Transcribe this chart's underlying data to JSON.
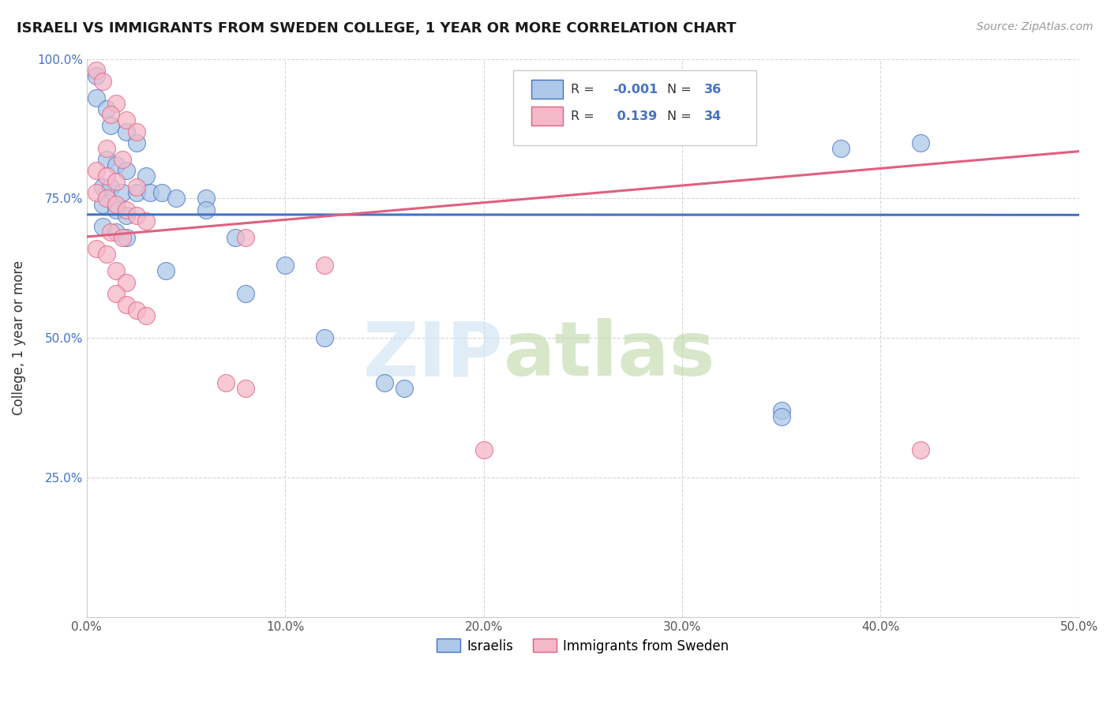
{
  "title": "ISRAELI VS IMMIGRANTS FROM SWEDEN COLLEGE, 1 YEAR OR MORE CORRELATION CHART",
  "source": "Source: ZipAtlas.com",
  "ylabel": "College, 1 year or more",
  "xlim": [
    0.0,
    0.5
  ],
  "ylim": [
    0.0,
    1.0
  ],
  "xticks": [
    0.0,
    0.1,
    0.2,
    0.3,
    0.4,
    0.5
  ],
  "xticklabels": [
    "0.0%",
    "10.0%",
    "20.0%",
    "30.0%",
    "40.0%",
    "50.0%"
  ],
  "yticks": [
    0.0,
    0.25,
    0.5,
    0.75,
    1.0
  ],
  "yticklabels": [
    "",
    "25.0%",
    "50.0%",
    "75.0%",
    "100.0%"
  ],
  "blue_color": "#adc8e8",
  "pink_color": "#f5b8c8",
  "blue_line_color": "#4472c4",
  "pink_line_color": "#e06080",
  "blue_R": -0.001,
  "blue_N": 36,
  "pink_R": 0.139,
  "pink_N": 34,
  "blue_dots": [
    [
      0.005,
      0.97
    ],
    [
      0.005,
      0.93
    ],
    [
      0.01,
      0.91
    ],
    [
      0.012,
      0.88
    ],
    [
      0.02,
      0.87
    ],
    [
      0.025,
      0.85
    ],
    [
      0.01,
      0.82
    ],
    [
      0.015,
      0.81
    ],
    [
      0.02,
      0.8
    ],
    [
      0.03,
      0.79
    ],
    [
      0.008,
      0.77
    ],
    [
      0.012,
      0.77
    ],
    [
      0.018,
      0.76
    ],
    [
      0.025,
      0.76
    ],
    [
      0.032,
      0.76
    ],
    [
      0.038,
      0.76
    ],
    [
      0.045,
      0.75
    ],
    [
      0.06,
      0.75
    ],
    [
      0.008,
      0.74
    ],
    [
      0.015,
      0.73
    ],
    [
      0.02,
      0.72
    ],
    [
      0.06,
      0.73
    ],
    [
      0.008,
      0.7
    ],
    [
      0.015,
      0.69
    ],
    [
      0.02,
      0.68
    ],
    [
      0.075,
      0.68
    ],
    [
      0.04,
      0.62
    ],
    [
      0.1,
      0.63
    ],
    [
      0.08,
      0.58
    ],
    [
      0.12,
      0.5
    ],
    [
      0.15,
      0.42
    ],
    [
      0.16,
      0.41
    ],
    [
      0.35,
      0.37
    ],
    [
      0.38,
      0.84
    ],
    [
      0.42,
      0.85
    ],
    [
      0.35,
      0.36
    ]
  ],
  "pink_dots": [
    [
      0.005,
      0.98
    ],
    [
      0.008,
      0.96
    ],
    [
      0.015,
      0.92
    ],
    [
      0.012,
      0.9
    ],
    [
      0.02,
      0.89
    ],
    [
      0.025,
      0.87
    ],
    [
      0.01,
      0.84
    ],
    [
      0.018,
      0.82
    ],
    [
      0.005,
      0.8
    ],
    [
      0.01,
      0.79
    ],
    [
      0.015,
      0.78
    ],
    [
      0.025,
      0.77
    ],
    [
      0.005,
      0.76
    ],
    [
      0.01,
      0.75
    ],
    [
      0.015,
      0.74
    ],
    [
      0.02,
      0.73
    ],
    [
      0.025,
      0.72
    ],
    [
      0.03,
      0.71
    ],
    [
      0.012,
      0.69
    ],
    [
      0.018,
      0.68
    ],
    [
      0.005,
      0.66
    ],
    [
      0.01,
      0.65
    ],
    [
      0.015,
      0.62
    ],
    [
      0.02,
      0.6
    ],
    [
      0.015,
      0.58
    ],
    [
      0.02,
      0.56
    ],
    [
      0.025,
      0.55
    ],
    [
      0.03,
      0.54
    ],
    [
      0.08,
      0.68
    ],
    [
      0.12,
      0.63
    ],
    [
      0.07,
      0.42
    ],
    [
      0.08,
      0.41
    ],
    [
      0.2,
      0.3
    ],
    [
      0.42,
      0.3
    ]
  ]
}
